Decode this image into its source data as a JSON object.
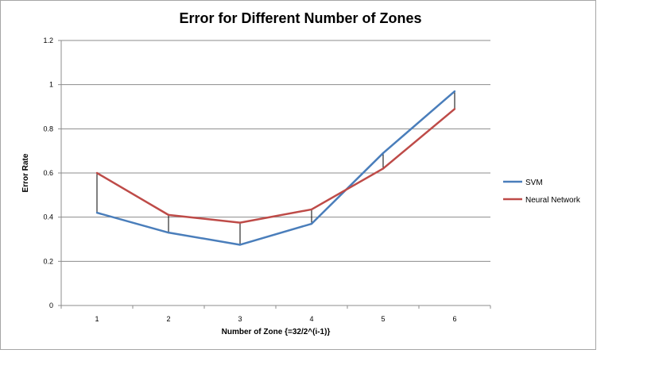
{
  "chart_data": {
    "type": "line",
    "title": "Error for Different Number of Zones",
    "xlabel": "Number of Zone {=32/2^(i-1)}",
    "ylabel": "Error Rate",
    "x": [
      1,
      2,
      3,
      4,
      5,
      6
    ],
    "ylim": [
      0,
      1.2
    ],
    "yticks": [
      "0",
      "0.2",
      "0.4",
      "0.6",
      "0.8",
      "1",
      "1.2"
    ],
    "grid": true,
    "legend": "right",
    "drop_lines": true,
    "series": [
      {
        "name": "SVM",
        "color": "#4a7ebb",
        "values": [
          0.42,
          0.33,
          0.275,
          0.37,
          0.69,
          0.97
        ]
      },
      {
        "name": "Neural Network",
        "color": "#be4b48",
        "values": [
          0.6,
          0.41,
          0.375,
          0.435,
          0.62,
          0.89
        ]
      }
    ]
  }
}
